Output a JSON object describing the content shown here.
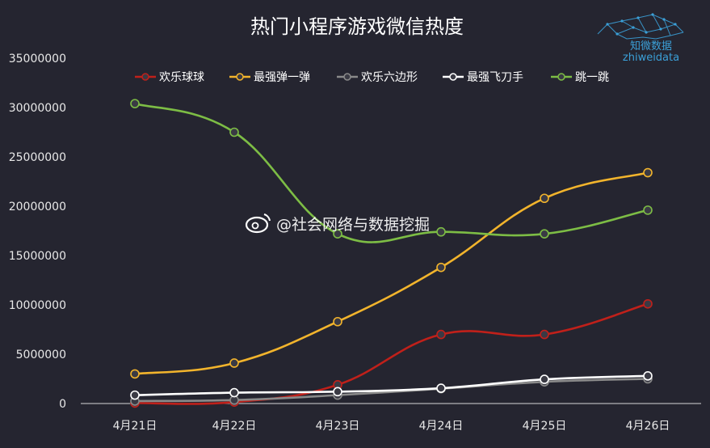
{
  "chart_data": {
    "type": "line",
    "title": "热门小程序游戏微信热度",
    "categories": [
      "4月21日",
      "4月22日",
      "4月23日",
      "4月24日",
      "4月25日",
      "4月26日"
    ],
    "ylim": [
      0,
      35000000
    ],
    "yticks": [
      "0",
      "5000000",
      "10000000",
      "15000000",
      "20000000",
      "25000000",
      "30000000",
      "35000000"
    ],
    "grid": false,
    "legend": "top",
    "series": [
      {
        "name": "欢乐球球",
        "color": "#c0201a",
        "values": [
          50000,
          150000,
          1900000,
          7000000,
          7000000,
          10100000
        ]
      },
      {
        "name": "最强弹一弹",
        "color": "#f2b42c",
        "values": [
          3000000,
          4100000,
          8300000,
          13800000,
          20800000,
          23400000
        ]
      },
      {
        "name": "欢乐六边形",
        "color": "#8a8a8a",
        "values": [
          250000,
          350000,
          850000,
          1500000,
          2200000,
          2500000
        ]
      },
      {
        "name": "最强飞刀手",
        "color": "#ffffff",
        "values": [
          850000,
          1100000,
          1200000,
          1550000,
          2450000,
          2800000
        ]
      },
      {
        "name": "跳一跳",
        "color": "#7dbd45",
        "values": [
          30400000,
          27500000,
          17200000,
          17400000,
          17200000,
          19600000
        ]
      }
    ]
  },
  "watermark": {
    "text": "@社会网络与数据挖掘"
  },
  "logo": {
    "text_cn": "知微数据",
    "text_en": "zhiweidata"
  }
}
